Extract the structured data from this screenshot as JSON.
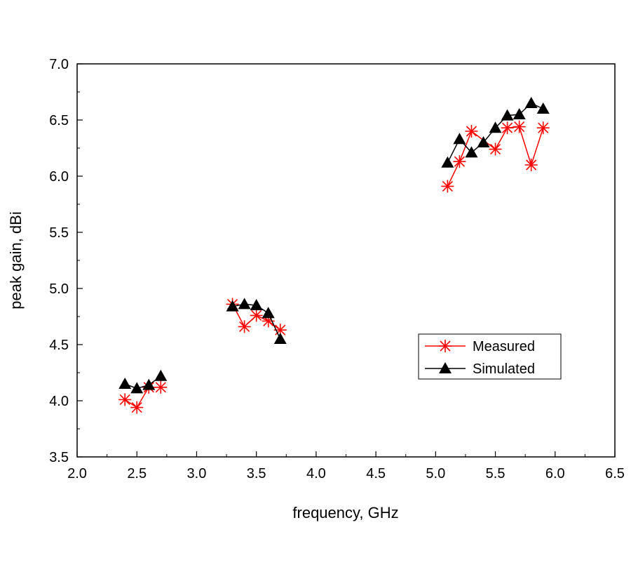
{
  "chart_data": {
    "type": "line",
    "title": "",
    "xlabel": "frequency, GHz",
    "ylabel": "peak gain, dBi",
    "xlim": [
      2.0,
      6.5
    ],
    "ylim": [
      3.5,
      7.0
    ],
    "xticks": [
      "2.0",
      "2.5",
      "3.0",
      "3.5",
      "4.0",
      "4.5",
      "5.0",
      "5.5",
      "6.0",
      "6.5"
    ],
    "yticks": [
      "3.5",
      "4.0",
      "4.5",
      "5.0",
      "5.5",
      "6.0",
      "6.5",
      "7.0"
    ],
    "grid": false,
    "legend_position": "center-right",
    "series": [
      {
        "name": "Measured",
        "color": "#ff0000",
        "marker": "asterisk",
        "segments": [
          {
            "x": [
              2.4,
              2.5,
              2.6,
              2.7
            ],
            "y": [
              4.01,
              3.94,
              4.12,
              4.12
            ]
          },
          {
            "x": [
              3.3,
              3.4,
              3.5,
              3.6,
              3.7
            ],
            "y": [
              4.86,
              4.66,
              4.76,
              4.71,
              4.63
            ]
          },
          {
            "x": [
              5.1,
              5.2,
              5.3,
              5.5,
              5.6,
              5.7,
              5.8,
              5.9
            ],
            "y": [
              5.91,
              6.13,
              6.4,
              6.24,
              6.43,
              6.44,
              6.1,
              6.43
            ]
          }
        ]
      },
      {
        "name": "Simulated",
        "color": "#000000",
        "marker": "triangle",
        "segments": [
          {
            "x": [
              2.4,
              2.5,
              2.6,
              2.7
            ],
            "y": [
              4.15,
              4.11,
              4.14,
              4.22
            ]
          },
          {
            "x": [
              3.3,
              3.4,
              3.5,
              3.6,
              3.7
            ],
            "y": [
              4.84,
              4.86,
              4.85,
              4.78,
              4.55
            ]
          },
          {
            "x": [
              5.1,
              5.2,
              5.3,
              5.4,
              5.5,
              5.6,
              5.7,
              5.8,
              5.9
            ],
            "y": [
              6.12,
              6.33,
              6.21,
              6.3,
              6.43,
              6.54,
              6.55,
              6.65,
              6.6
            ]
          }
        ]
      }
    ]
  }
}
